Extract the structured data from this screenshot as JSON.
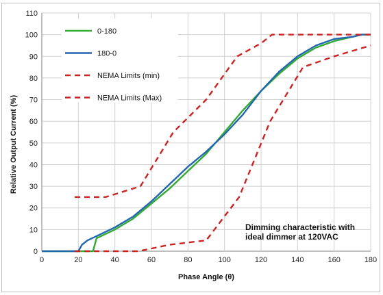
{
  "chart_data": {
    "type": "line",
    "title": "",
    "xlabel": "Phase Angle (θ)",
    "ylabel": "Relative Output Current (%)",
    "xlim": [
      0,
      180
    ],
    "ylim": [
      0,
      110
    ],
    "xticks": [
      0,
      20,
      40,
      60,
      80,
      100,
      120,
      140,
      160,
      180
    ],
    "yticks": [
      0,
      10,
      20,
      30,
      40,
      50,
      60,
      70,
      80,
      90,
      100,
      110
    ],
    "grid": true,
    "legend_position": "top-left",
    "annotation": [
      "Dimming characteristic with",
      "ideal dimmer at 120VAC"
    ],
    "series": [
      {
        "name": "0-180",
        "color": "#33aa33",
        "style": "solid",
        "points": [
          [
            0,
            0
          ],
          [
            28,
            0
          ],
          [
            29,
            3
          ],
          [
            30,
            6
          ],
          [
            40,
            10
          ],
          [
            50,
            15
          ],
          [
            60,
            22
          ],
          [
            70,
            29
          ],
          [
            80,
            37
          ],
          [
            90,
            45
          ],
          [
            100,
            55
          ],
          [
            110,
            65
          ],
          [
            120,
            74
          ],
          [
            130,
            82
          ],
          [
            140,
            89
          ],
          [
            150,
            94
          ],
          [
            160,
            97
          ],
          [
            170,
            99
          ],
          [
            175,
            100
          ],
          [
            180,
            100
          ]
        ]
      },
      {
        "name": "180-0",
        "color": "#2266b0",
        "style": "solid",
        "points": [
          [
            0,
            0
          ],
          [
            20,
            0
          ],
          [
            22,
            3
          ],
          [
            25,
            5
          ],
          [
            30,
            7
          ],
          [
            40,
            11
          ],
          [
            50,
            16
          ],
          [
            60,
            23
          ],
          [
            70,
            31
          ],
          [
            80,
            39
          ],
          [
            90,
            46
          ],
          [
            100,
            54
          ],
          [
            110,
            63
          ],
          [
            120,
            74
          ],
          [
            130,
            83
          ],
          [
            140,
            90
          ],
          [
            150,
            95
          ],
          [
            160,
            98
          ],
          [
            170,
            99
          ],
          [
            175,
            100
          ],
          [
            180,
            100
          ]
        ]
      },
      {
        "name": "NEMA Limits (min)",
        "color": "#cc2222",
        "style": "dashed",
        "points": [
          [
            18,
            0
          ],
          [
            53,
            0
          ],
          [
            70,
            3
          ],
          [
            90,
            5
          ],
          [
            108,
            25
          ],
          [
            125,
            60
          ],
          [
            143,
            85
          ],
          [
            160,
            90
          ],
          [
            180,
            95
          ]
        ]
      },
      {
        "name": "NEMA Limits (Max)",
        "color": "#cc2222",
        "style": "dashed",
        "points": [
          [
            18,
            25
          ],
          [
            35,
            25
          ],
          [
            54,
            30
          ],
          [
            72,
            55
          ],
          [
            90,
            70
          ],
          [
            107,
            90
          ],
          [
            120,
            96
          ],
          [
            126,
            100
          ],
          [
            180,
            100
          ]
        ]
      }
    ]
  }
}
